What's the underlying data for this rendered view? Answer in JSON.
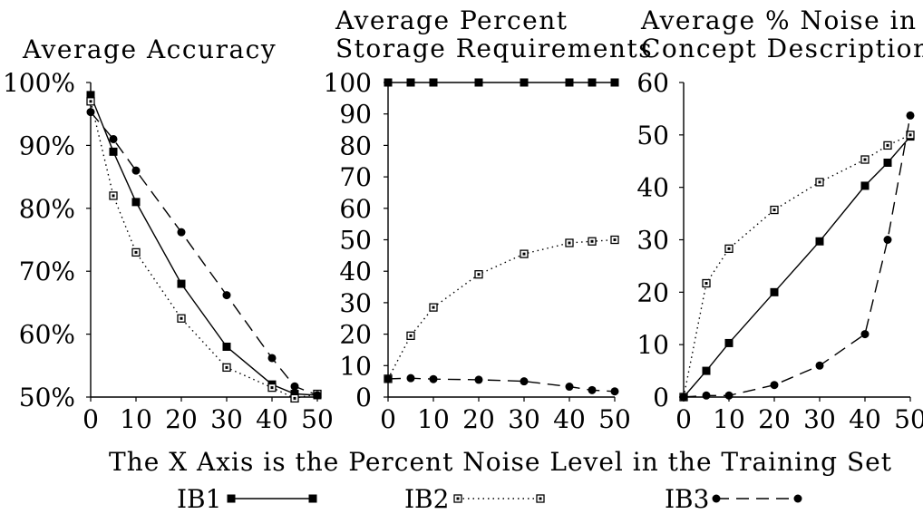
{
  "caption": "The X Axis is the Percent Noise Level in the Training Set",
  "legend": [
    {
      "label": "IB1",
      "style": "solid",
      "marker": "filled-square"
    },
    {
      "label": "IB2",
      "style": "dotted",
      "marker": "open-square"
    },
    {
      "label": "IB3",
      "style": "dashed",
      "marker": "filled-circle"
    }
  ],
  "chart_data": [
    {
      "type": "line",
      "title_lines": [
        "Average Accuracy"
      ],
      "x": [
        0,
        5,
        10,
        20,
        30,
        40,
        45,
        50
      ],
      "x_ticks": [
        "0",
        "10",
        "20",
        "30",
        "40",
        "50"
      ],
      "y_ticks": [
        "50%",
        "60%",
        "70%",
        "80%",
        "90%",
        "100%"
      ],
      "xlim": [
        0,
        50
      ],
      "ylim": [
        50,
        100
      ],
      "grid": false,
      "series": [
        {
          "name": "IB1",
          "values": [
            98,
            89,
            81,
            68,
            58,
            52,
            50.5,
            50.3
          ]
        },
        {
          "name": "IB2",
          "values": [
            97,
            82,
            73,
            62.5,
            54.7,
            51.5,
            49.8,
            50.5
          ]
        },
        {
          "name": "IB3",
          "values": [
            95.3,
            91,
            86,
            76.2,
            66.2,
            56.2,
            51.7,
            50.3
          ]
        }
      ]
    },
    {
      "type": "line",
      "title_lines": [
        "Average Percent",
        "Storage Requirements"
      ],
      "x": [
        0,
        5,
        10,
        20,
        30,
        40,
        45,
        50
      ],
      "x_ticks": [
        "0",
        "10",
        "20",
        "30",
        "40",
        "50"
      ],
      "y_ticks": [
        "0",
        "10",
        "20",
        "30",
        "40",
        "50",
        "60",
        "70",
        "80",
        "90",
        "100"
      ],
      "xlim": [
        0,
        50
      ],
      "ylim": [
        0,
        100
      ],
      "grid": false,
      "series": [
        {
          "name": "IB1",
          "values": [
            100,
            100,
            100,
            100,
            100,
            100,
            100,
            100
          ]
        },
        {
          "name": "IB2",
          "values": [
            5.8,
            19.5,
            28.5,
            39,
            45.5,
            49,
            49.5,
            50
          ]
        },
        {
          "name": "IB3",
          "values": [
            5.8,
            6,
            5.7,
            5.5,
            5,
            3.3,
            2.2,
            1.8
          ]
        }
      ]
    },
    {
      "type": "line",
      "title_lines": [
        "Average % Noise in",
        "Concept Description"
      ],
      "x": [
        0,
        5,
        10,
        20,
        30,
        40,
        45,
        50
      ],
      "x_ticks": [
        "0",
        "10",
        "20",
        "30",
        "40",
        "50"
      ],
      "y_ticks": [
        "0",
        "10",
        "20",
        "30",
        "40",
        "50",
        "60"
      ],
      "xlim": [
        0,
        50
      ],
      "ylim": [
        0,
        60
      ],
      "grid": false,
      "series": [
        {
          "name": "IB1",
          "values": [
            0,
            5,
            10.3,
            20,
            29.7,
            40.3,
            44.7,
            49.7
          ]
        },
        {
          "name": "IB2",
          "values": [
            0,
            21.7,
            28.3,
            35.7,
            41,
            45.3,
            48,
            50
          ]
        },
        {
          "name": "IB3",
          "values": [
            0,
            0.3,
            0.3,
            2.3,
            6,
            12,
            30,
            53.7
          ]
        }
      ]
    }
  ]
}
